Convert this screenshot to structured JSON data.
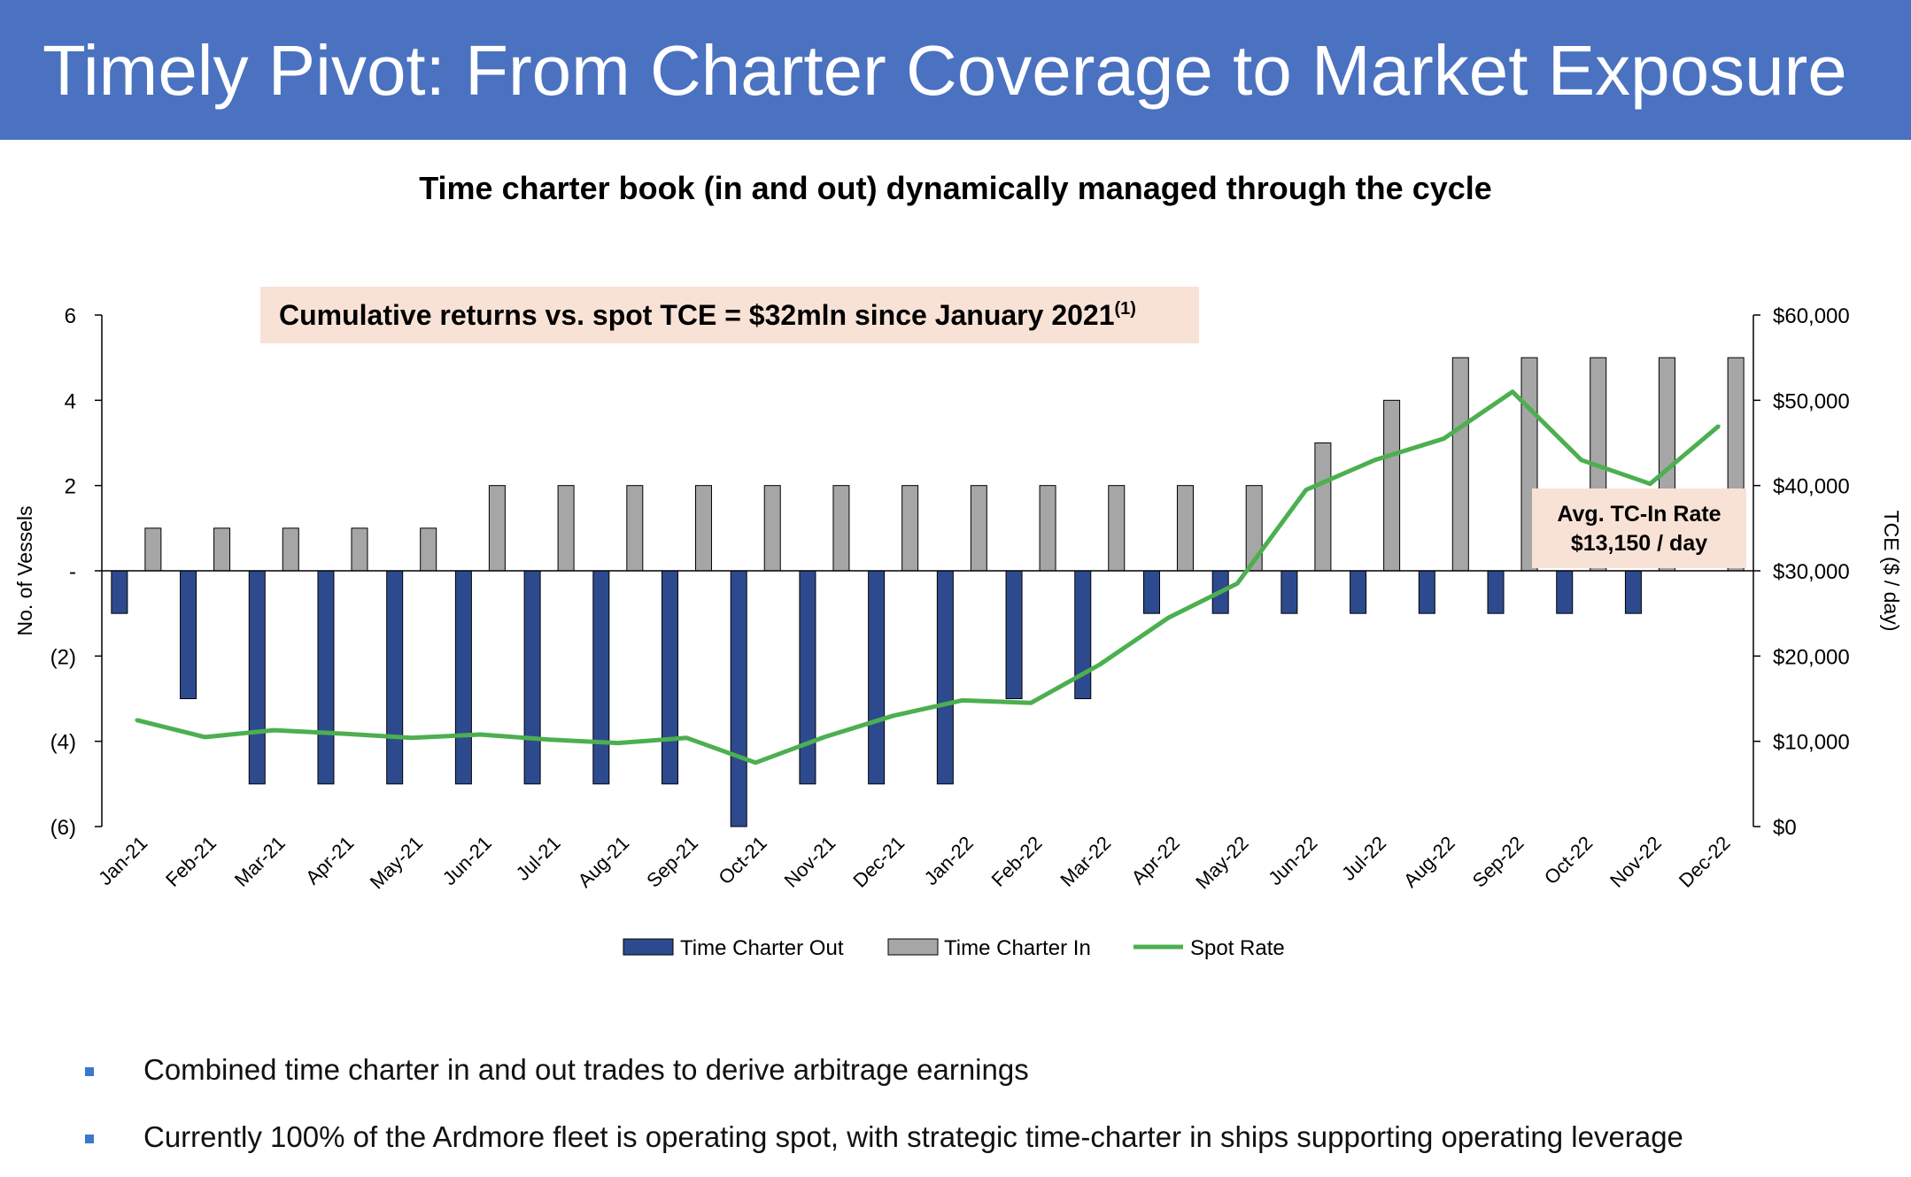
{
  "header": {
    "title": "Timely Pivot: From Charter Coverage to Market Exposure"
  },
  "subtitle": "Time charter book (in and out) dynamically managed through the cycle",
  "annotation": {
    "text": "Cumulative returns vs. spot TCE = $32mln since January 2021",
    "superscript": "(1)"
  },
  "callout": {
    "line1": "Avg. TC-In Rate",
    "line2": "$13,150 / day"
  },
  "axes": {
    "left_label": "No. of Vessels",
    "right_label": "TCE ($ / day)",
    "left_ticks": [
      {
        "value": 6,
        "label": "6"
      },
      {
        "value": 4,
        "label": "4"
      },
      {
        "value": 2,
        "label": "2"
      },
      {
        "value": 0,
        "label": "-"
      },
      {
        "value": -2,
        "label": "(2)"
      },
      {
        "value": -4,
        "label": "(4)"
      },
      {
        "value": -6,
        "label": "(6)"
      }
    ],
    "right_ticks": [
      {
        "value": 60000,
        "label": "$60,000"
      },
      {
        "value": 50000,
        "label": "$50,000"
      },
      {
        "value": 40000,
        "label": "$40,000"
      },
      {
        "value": 30000,
        "label": "$30,000"
      },
      {
        "value": 20000,
        "label": "$20,000"
      },
      {
        "value": 10000,
        "label": "$10,000"
      },
      {
        "value": 0,
        "label": "$0"
      }
    ]
  },
  "chart_data": {
    "type": "bar",
    "categories": [
      "Jan-21",
      "Feb-21",
      "Mar-21",
      "Apr-21",
      "May-21",
      "Jun-21",
      "Jul-21",
      "Aug-21",
      "Sep-21",
      "Oct-21",
      "Nov-21",
      "Dec-21",
      "Jan-22",
      "Feb-22",
      "Mar-22",
      "Apr-22",
      "May-22",
      "Jun-22",
      "Jul-22",
      "Aug-22",
      "Sep-22",
      "Oct-22",
      "Nov-22",
      "Dec-22"
    ],
    "series": [
      {
        "name": "Time Charter Out",
        "type": "bar",
        "axis": "left",
        "color": "#2e4a8e",
        "values": [
          -1,
          -3,
          -5,
          -5,
          -5,
          -5,
          -5,
          -5,
          -5,
          -6,
          -5,
          -5,
          -5,
          -3,
          -3,
          -1,
          -1,
          -1,
          -1,
          -1,
          -1,
          -1,
          -1,
          0
        ]
      },
      {
        "name": "Time Charter In",
        "type": "bar",
        "axis": "left",
        "color": "#a6a6a6",
        "values": [
          1,
          1,
          1,
          1,
          1,
          2,
          2,
          2,
          2,
          2,
          2,
          2,
          2,
          2,
          2,
          2,
          2,
          3,
          4,
          5,
          5,
          5,
          5,
          5
        ]
      },
      {
        "name": "Spot Rate",
        "type": "line",
        "axis": "right",
        "color": "#4caf50",
        "values": [
          12500,
          10500,
          11300,
          10900,
          10400,
          10800,
          10200,
          9800,
          10400,
          7500,
          10500,
          13000,
          14800,
          14500,
          19000,
          24500,
          28500,
          39500,
          43000,
          45500,
          51000,
          43000,
          40200,
          47000
        ]
      }
    ],
    "ylim_left": [
      -6,
      6
    ],
    "ylim_right": [
      0,
      60000
    ],
    "ylabel_left": "No. of Vessels",
    "ylabel_right": "TCE ($ / day)",
    "legend_position": "bottom-center",
    "grid": false
  },
  "bullets": [
    "Combined time charter in and out trades to derive arbitrage earnings",
    "Currently 100% of the Ardmore fleet is operating spot, with strategic time-charter in ships supporting operating leverage"
  ]
}
